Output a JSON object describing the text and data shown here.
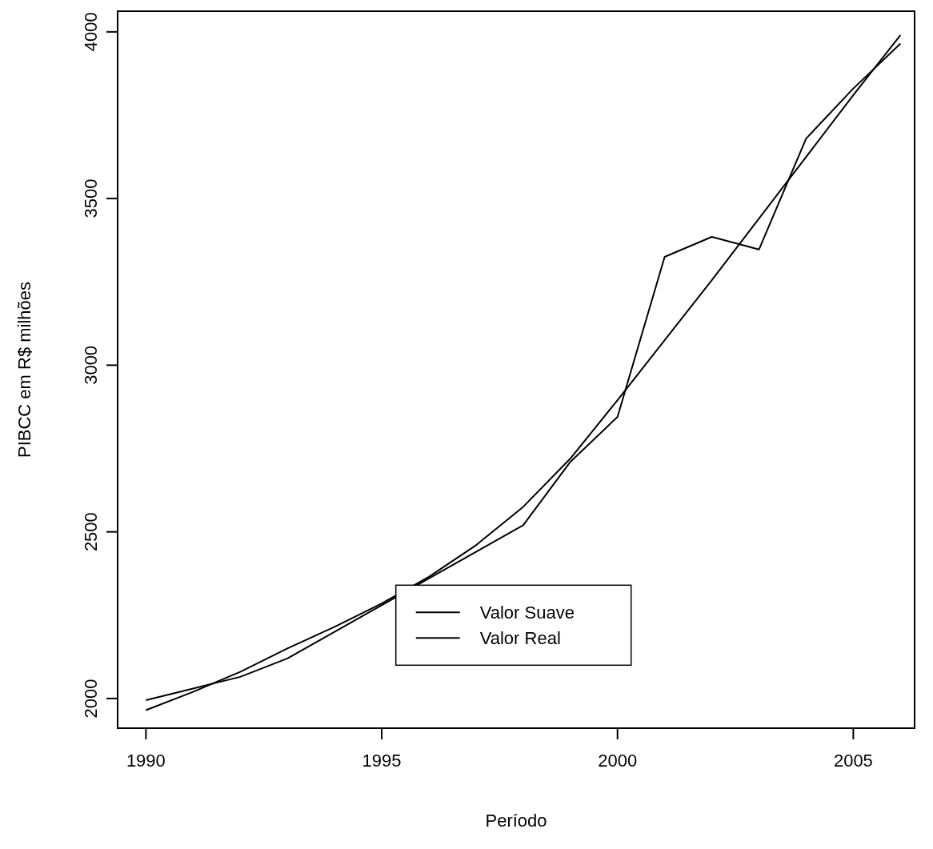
{
  "chart_data": {
    "type": "line",
    "xlabel": "Período",
    "ylabel": "PIBCC em R$ milhões",
    "x": [
      1990,
      1991,
      1992,
      1993,
      1994,
      1995,
      1996,
      1997,
      1998,
      1999,
      2000,
      2001,
      2002,
      2003,
      2004,
      2005,
      2006
    ],
    "xlim": [
      1989.4,
      2006.3
    ],
    "xticks": [
      1990,
      1995,
      2000,
      2005
    ],
    "ylim": [
      1911,
      4062
    ],
    "yticks": [
      2000,
      2500,
      3000,
      3500,
      4000
    ],
    "legend": "bottom",
    "grid": false,
    "series": [
      {
        "name": "Valor Suave",
        "color": "#000000",
        "values": [
          1965,
          2020,
          2080,
          2150,
          2215,
          2285,
          2365,
          2460,
          2575,
          2720,
          2895,
          3075,
          3255,
          3440,
          3625,
          3810,
          3990
        ]
      },
      {
        "name": "Valor Real",
        "color": "#000000",
        "values": [
          1995,
          2030,
          2065,
          2120,
          2200,
          2280,
          2360,
          2440,
          2520,
          2710,
          2845,
          3325,
          3385,
          3347,
          3680,
          3830,
          3965
        ]
      }
    ]
  }
}
